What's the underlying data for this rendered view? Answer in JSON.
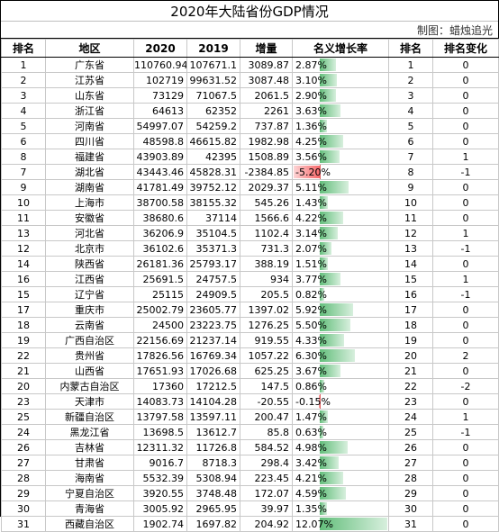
{
  "title": "2020年大陆省份GDP情况",
  "credit": "制图：蜡烛追光",
  "headers": [
    "排名",
    "地区",
    "2020",
    "2019",
    "增量",
    "名义增长率",
    "排名",
    "排名变化"
  ],
  "colors": {
    "positive_bar": "#63be7b",
    "negative_bar": "#f8696b"
  },
  "rows": [
    {
      "rank": "1",
      "region": "广东省",
      "gdp2020": "110760.94",
      "gdp2019": "107671.1",
      "increase": "3089.87",
      "growth": "2.87%",
      "growth_value": 2.87,
      "rank2019": "1",
      "rank_change": "0"
    },
    {
      "rank": "2",
      "region": "江苏省",
      "gdp2020": "102719",
      "gdp2019": "99631.52",
      "increase": "3087.48",
      "growth": "3.10%",
      "growth_value": 3.1,
      "rank2019": "2",
      "rank_change": "0"
    },
    {
      "rank": "3",
      "region": "山东省",
      "gdp2020": "73129",
      "gdp2019": "71067.5",
      "increase": "2061.5",
      "growth": "2.90%",
      "growth_value": 2.9,
      "rank2019": "3",
      "rank_change": "0"
    },
    {
      "rank": "4",
      "region": "浙江省",
      "gdp2020": "64613",
      "gdp2019": "62352",
      "increase": "2261",
      "growth": "3.63%",
      "growth_value": 3.63,
      "rank2019": "4",
      "rank_change": "0"
    },
    {
      "rank": "5",
      "region": "河南省",
      "gdp2020": "54997.07",
      "gdp2019": "54259.2",
      "increase": "737.87",
      "growth": "1.36%",
      "growth_value": 1.36,
      "rank2019": "5",
      "rank_change": "0"
    },
    {
      "rank": "6",
      "region": "四川省",
      "gdp2020": "48598.8",
      "gdp2019": "46615.82",
      "increase": "1982.98",
      "growth": "4.25%",
      "growth_value": 4.25,
      "rank2019": "6",
      "rank_change": "0"
    },
    {
      "rank": "8",
      "region": "福建省",
      "gdp2020": "43903.89",
      "gdp2019": "42395",
      "increase": "1508.89",
      "growth": "3.56%",
      "growth_value": 3.56,
      "rank2019": "7",
      "rank_change": "1"
    },
    {
      "rank": "7",
      "region": "湖北省",
      "gdp2020": "43443.46",
      "gdp2019": "45828.31",
      "increase": "-2384.85",
      "growth": "-5.20%",
      "growth_value": -5.2,
      "rank2019": "8",
      "rank_change": "-1"
    },
    {
      "rank": "9",
      "region": "湖南省",
      "gdp2020": "41781.49",
      "gdp2019": "39752.12",
      "increase": "2029.37",
      "growth": "5.11%",
      "growth_value": 5.11,
      "rank2019": "9",
      "rank_change": "0"
    },
    {
      "rank": "10",
      "region": "上海市",
      "gdp2020": "38700.58",
      "gdp2019": "38155.32",
      "increase": "545.26",
      "growth": "1.43%",
      "growth_value": 1.43,
      "rank2019": "10",
      "rank_change": "0"
    },
    {
      "rank": "11",
      "region": "安徽省",
      "gdp2020": "38680.6",
      "gdp2019": "37114",
      "increase": "1566.6",
      "growth": "4.22%",
      "growth_value": 4.22,
      "rank2019": "11",
      "rank_change": "0"
    },
    {
      "rank": "13",
      "region": "河北省",
      "gdp2020": "36206.9",
      "gdp2019": "35104.5",
      "increase": "1102.4",
      "growth": "3.14%",
      "growth_value": 3.14,
      "rank2019": "12",
      "rank_change": "1"
    },
    {
      "rank": "12",
      "region": "北京市",
      "gdp2020": "36102.6",
      "gdp2019": "35371.3",
      "increase": "731.3",
      "growth": "2.07%",
      "growth_value": 2.07,
      "rank2019": "13",
      "rank_change": "-1"
    },
    {
      "rank": "14",
      "region": "陕西省",
      "gdp2020": "26181.36",
      "gdp2019": "25793.17",
      "increase": "388.19",
      "growth": "1.51%",
      "growth_value": 1.51,
      "rank2019": "14",
      "rank_change": "0"
    },
    {
      "rank": "16",
      "region": "江西省",
      "gdp2020": "25691.5",
      "gdp2019": "24757.5",
      "increase": "934",
      "growth": "3.77%",
      "growth_value": 3.77,
      "rank2019": "15",
      "rank_change": "1"
    },
    {
      "rank": "15",
      "region": "辽宁省",
      "gdp2020": "25115",
      "gdp2019": "24909.5",
      "increase": "205.5",
      "growth": "0.82%",
      "growth_value": 0.82,
      "rank2019": "16",
      "rank_change": "-1"
    },
    {
      "rank": "17",
      "region": "重庆市",
      "gdp2020": "25002.79",
      "gdp2019": "23605.77",
      "increase": "1397.02",
      "growth": "5.92%",
      "growth_value": 5.92,
      "rank2019": "17",
      "rank_change": "0"
    },
    {
      "rank": "18",
      "region": "云南省",
      "gdp2020": "24500",
      "gdp2019": "23223.75",
      "increase": "1276.25",
      "growth": "5.50%",
      "growth_value": 5.5,
      "rank2019": "18",
      "rank_change": "0"
    },
    {
      "rank": "19",
      "region": "广西自治区",
      "gdp2020": "22156.69",
      "gdp2019": "21237.14",
      "increase": "919.55",
      "growth": "4.33%",
      "growth_value": 4.33,
      "rank2019": "19",
      "rank_change": "0"
    },
    {
      "rank": "22",
      "region": "贵州省",
      "gdp2020": "17826.56",
      "gdp2019": "16769.34",
      "increase": "1057.22",
      "growth": "6.30%",
      "growth_value": 6.3,
      "rank2019": "20",
      "rank_change": "2"
    },
    {
      "rank": "21",
      "region": "山西省",
      "gdp2020": "17651.93",
      "gdp2019": "17026.68",
      "increase": "625.25",
      "growth": "3.67%",
      "growth_value": 3.67,
      "rank2019": "21",
      "rank_change": "0"
    },
    {
      "rank": "20",
      "region": "内蒙古自治区",
      "gdp2020": "17360",
      "gdp2019": "17212.5",
      "increase": "147.5",
      "growth": "0.86%",
      "growth_value": 0.86,
      "rank2019": "22",
      "rank_change": "-2"
    },
    {
      "rank": "23",
      "region": "天津市",
      "gdp2020": "14083.73",
      "gdp2019": "14104.28",
      "increase": "-20.55",
      "growth": "-0.15%",
      "growth_value": -0.15,
      "rank2019": "23",
      "rank_change": "0"
    },
    {
      "rank": "25",
      "region": "新疆自治区",
      "gdp2020": "13797.58",
      "gdp2019": "13597.11",
      "increase": "200.47",
      "growth": "1.47%",
      "growth_value": 1.47,
      "rank2019": "24",
      "rank_change": "1"
    },
    {
      "rank": "24",
      "region": "黑龙江省",
      "gdp2020": "13698.5",
      "gdp2019": "13612.7",
      "increase": "85.8",
      "growth": "0.63%",
      "growth_value": 0.63,
      "rank2019": "25",
      "rank_change": "-1"
    },
    {
      "rank": "26",
      "region": "吉林省",
      "gdp2020": "12311.32",
      "gdp2019": "11726.8",
      "increase": "584.52",
      "growth": "4.98%",
      "growth_value": 4.98,
      "rank2019": "26",
      "rank_change": "0"
    },
    {
      "rank": "27",
      "region": "甘肃省",
      "gdp2020": "9016.7",
      "gdp2019": "8718.3",
      "increase": "298.4",
      "growth": "3.42%",
      "growth_value": 3.42,
      "rank2019": "27",
      "rank_change": "0"
    },
    {
      "rank": "28",
      "region": "海南省",
      "gdp2020": "5532.39",
      "gdp2019": "5308.94",
      "increase": "223.45",
      "growth": "4.21%",
      "growth_value": 4.21,
      "rank2019": "28",
      "rank_change": "0"
    },
    {
      "rank": "29",
      "region": "宁夏自治区",
      "gdp2020": "3920.55",
      "gdp2019": "3748.48",
      "increase": "172.07",
      "growth": "4.59%",
      "growth_value": 4.59,
      "rank2019": "29",
      "rank_change": "0"
    },
    {
      "rank": "30",
      "region": "青海省",
      "gdp2020": "3005.92",
      "gdp2019": "2965.95",
      "increase": "39.97",
      "growth": "1.35%",
      "growth_value": 1.35,
      "rank2019": "30",
      "rank_change": "0"
    },
    {
      "rank": "31",
      "region": "西藏自治区",
      "gdp2020": "1902.74",
      "gdp2019": "1697.82",
      "increase": "204.92",
      "growth": "12.07%",
      "growth_value": 12.07,
      "rank2019": "31",
      "rank_change": "0"
    }
  ]
}
